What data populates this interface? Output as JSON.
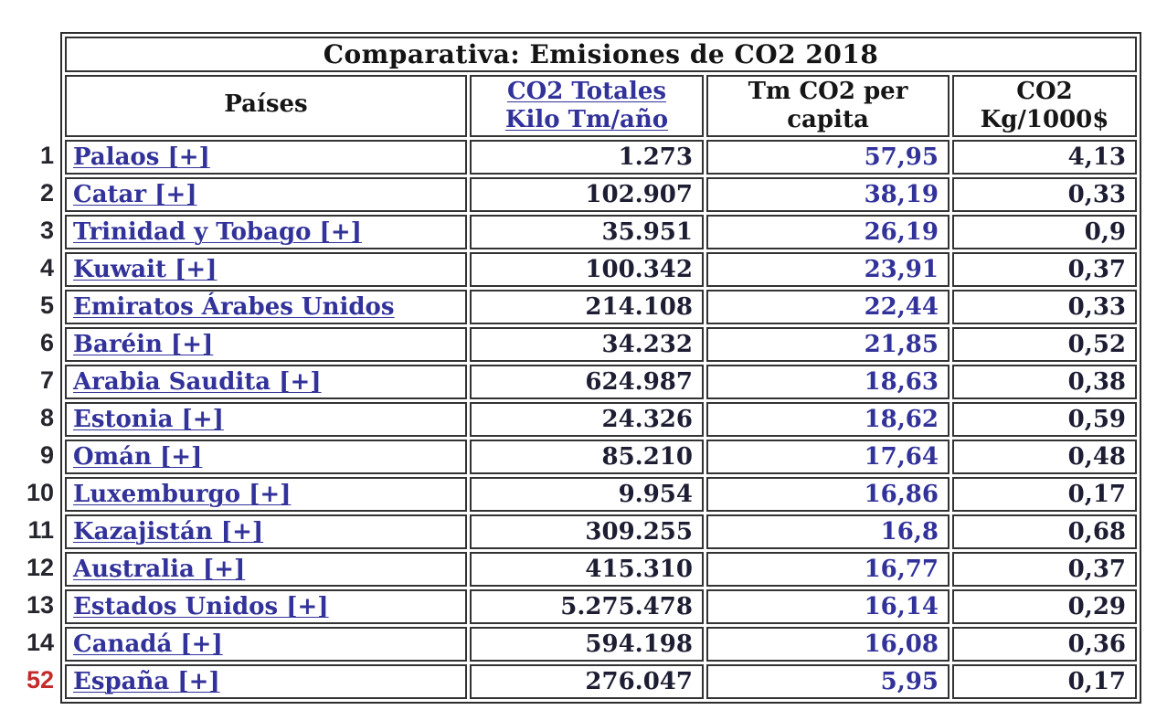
{
  "header": {
    "paises": "Países",
    "totales_l1": "CO2 Totales",
    "totales_l2": "Kilo Tm/año",
    "capita_l1": "Tm CO2 per",
    "capita_l2": "capita",
    "kg_l1": "CO2",
    "kg_l2": "Kg/1000$"
  },
  "colors": {
    "link_blue": "#32329b",
    "cream_highlight": "#f5f5dc",
    "rank_red": "#c32a2a",
    "dark_text": "#1d1d33",
    "border": "#333333"
  },
  "chart_data": {
    "type": "table",
    "title": "Comparativa: Emisiones de CO2 2018",
    "columns": [
      "Países",
      "CO2 Totales Kilo Tm/año",
      "Tm CO2 per capita",
      "CO2 Kg/1000$"
    ],
    "rows": [
      {
        "rank": "1",
        "pais": "Palaos [+]",
        "totales": "1.273",
        "per_capita": "57,95",
        "kg_1000": "4,13"
      },
      {
        "rank": "2",
        "pais": "Catar [+]",
        "totales": "102.907",
        "per_capita": "38,19",
        "kg_1000": "0,33"
      },
      {
        "rank": "3",
        "pais": "Trinidad y Tobago [+]",
        "totales": "35.951",
        "per_capita": "26,19",
        "kg_1000": "0,9"
      },
      {
        "rank": "4",
        "pais": "Kuwait [+]",
        "totales": "100.342",
        "per_capita": "23,91",
        "kg_1000": "0,37"
      },
      {
        "rank": "5",
        "pais": "Emiratos Árabes Unidos",
        "totales": "214.108",
        "per_capita": "22,44",
        "kg_1000": "0,33"
      },
      {
        "rank": "6",
        "pais": "Baréin [+]",
        "totales": "34.232",
        "per_capita": "21,85",
        "kg_1000": "0,52"
      },
      {
        "rank": "7",
        "pais": "Arabia Saudita [+]",
        "totales": "624.987",
        "per_capita": "18,63",
        "kg_1000": "0,38"
      },
      {
        "rank": "8",
        "pais": "Estonia [+]",
        "totales": "24.326",
        "per_capita": "18,62",
        "kg_1000": "0,59"
      },
      {
        "rank": "9",
        "pais": "Omán [+]",
        "totales": "85.210",
        "per_capita": "17,64",
        "kg_1000": "0,48"
      },
      {
        "rank": "10",
        "pais": "Luxemburgo [+]",
        "totales": "9.954",
        "per_capita": "16,86",
        "kg_1000": "0,17"
      },
      {
        "rank": "11",
        "pais": "Kazajistán [+]",
        "totales": "309.255",
        "per_capita": "16,8",
        "kg_1000": "0,68"
      },
      {
        "rank": "12",
        "pais": "Australia [+]",
        "totales": "415.310",
        "per_capita": "16,77",
        "kg_1000": "0,37"
      },
      {
        "rank": "13",
        "pais": "Estados Unidos [+]",
        "totales": "5.275.478",
        "per_capita": "16,14",
        "kg_1000": "0,29"
      },
      {
        "rank": "14",
        "pais": "Canadá [+]",
        "totales": "594.198",
        "per_capita": "16,08",
        "kg_1000": "0,36"
      },
      {
        "rank": "52",
        "pais": "España [+]",
        "totales": "276.047",
        "per_capita": "5,95",
        "kg_1000": "0,17"
      }
    ]
  }
}
